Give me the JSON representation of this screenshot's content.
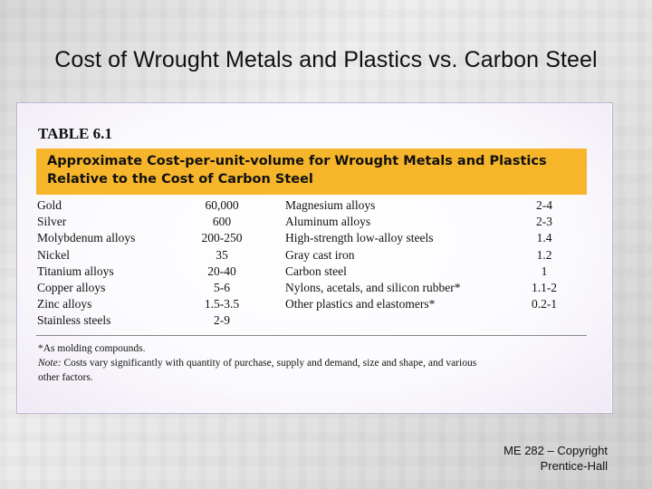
{
  "slide": {
    "title": "Cost of Wrought Metals and Plastics vs. Carbon Steel",
    "footer_line1": "ME 282 – Copyright",
    "footer_line2": "Prentice-Hall"
  },
  "table": {
    "label": "TABLE 6.1",
    "caption_line1": "Approximate Cost-per-unit-volume for Wrought Metals and Plastics",
    "caption_line2": "Relative to the Cost of Carbon Steel",
    "caption_color": "#f6b52a",
    "rows": [
      {
        "material1": "Gold",
        "cost1": "60,000",
        "material2": "Magnesium alloys",
        "cost2": "2-4"
      },
      {
        "material1": "Silver",
        "cost1": "600",
        "material2": "Aluminum alloys",
        "cost2": "2-3"
      },
      {
        "material1": "Molybdenum alloys",
        "cost1": "200-250",
        "material2": "High-strength low-alloy steels",
        "cost2": "1.4"
      },
      {
        "material1": "Nickel",
        "cost1": "35",
        "material2": "Gray cast iron",
        "cost2": "1.2"
      },
      {
        "material1": "Titanium alloys",
        "cost1": "20-40",
        "material2": "Carbon steel",
        "cost2": "1"
      },
      {
        "material1": "Copper alloys",
        "cost1": "5-6",
        "material2": "Nylons, acetals, and silicon rubber*",
        "cost2": "1.1-2"
      },
      {
        "material1": "Zinc alloys",
        "cost1": "1.5-3.5",
        "material2": "Other plastics and elastomers*",
        "cost2": "0.2-1"
      },
      {
        "material1": "Stainless steels",
        "cost1": "2-9",
        "material2": "",
        "cost2": ""
      }
    ],
    "footnote": "*As molding compounds.",
    "note_label": "Note:",
    "note_line1": "Costs vary significantly with quantity of purchase, supply and demand, size and shape, and various",
    "note_line2": "other factors."
  }
}
